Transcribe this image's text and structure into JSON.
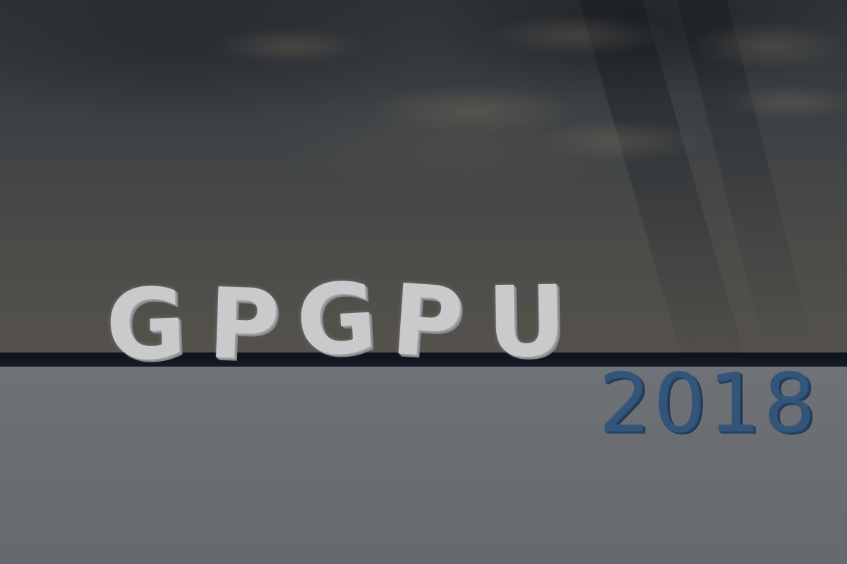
{
  "scene": {
    "title_letters": [
      "G",
      "P",
      "G",
      "P",
      "U"
    ],
    "year": "2018",
    "colors": {
      "sky": "#3d4145",
      "ledge": "#0c131d",
      "floor": "#6c6f73",
      "title_text": "#c9cacb",
      "year_text": "#33557a"
    }
  }
}
